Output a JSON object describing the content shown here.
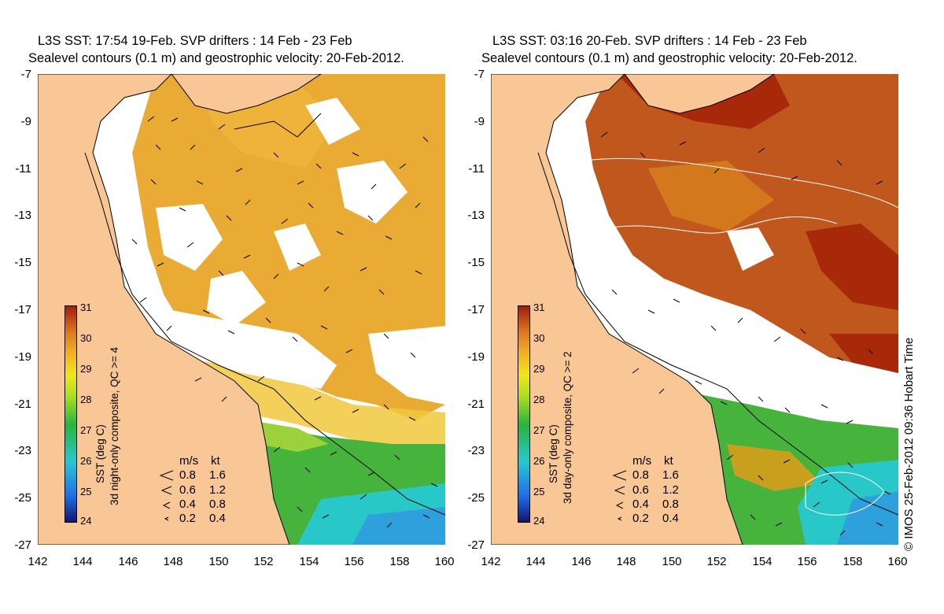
{
  "left_panel": {
    "title_line1": "L3S SST: 17:54 19-Feb. SVP drifters : 14 Feb - 23 Feb",
    "title_line2": "Sealevel contours (0.1 m) and geostrophic velocity: 20-Feb-2012.",
    "colorbar_label": "SST (deg C)",
    "composite_label": "3d night-only composite, QC >= 4"
  },
  "right_panel": {
    "title_line1": "L3S SST: 03:16 20-Feb. SVP drifters : 14 Feb - 23 Feb",
    "title_line2": "Sealevel contours (0.1 m) and geostrophic velocity: 20-Feb-2012.",
    "colorbar_label": "SST (deg C)",
    "composite_label": "3d day-only composite, QC >= 2"
  },
  "y_ticks": [
    "-7",
    "-9",
    "-11",
    "-13",
    "-15",
    "-17",
    "-19",
    "-21",
    "-23",
    "-25",
    "-27"
  ],
  "x_ticks": [
    "142",
    "144",
    "146",
    "148",
    "150",
    "152",
    "154",
    "156",
    "158",
    "160"
  ],
  "colorbar_ticks": [
    "31",
    "30",
    "29",
    "28",
    "27",
    "26",
    "25",
    "24"
  ],
  "velocity_legend": {
    "header_ms": "m/s",
    "header_kt": "kt",
    "rows": [
      {
        "ms": "0.8",
        "kt": "1.6"
      },
      {
        "ms": "0.6",
        "kt": "1.2"
      },
      {
        "ms": "0.4",
        "kt": "0.8"
      },
      {
        "ms": "0.2",
        "kt": "0.4"
      }
    ]
  },
  "credit": "© IMOS 25-Feb-2012 09:36 Hobart Time",
  "colors": {
    "land": "#f9c796",
    "sst_warm": "#e8a21e",
    "sst_hot": "#a8280a",
    "sst_mid": "#f0c83c",
    "sst_cool": "#46b43c",
    "sst_cold": "#28c8c8"
  }
}
